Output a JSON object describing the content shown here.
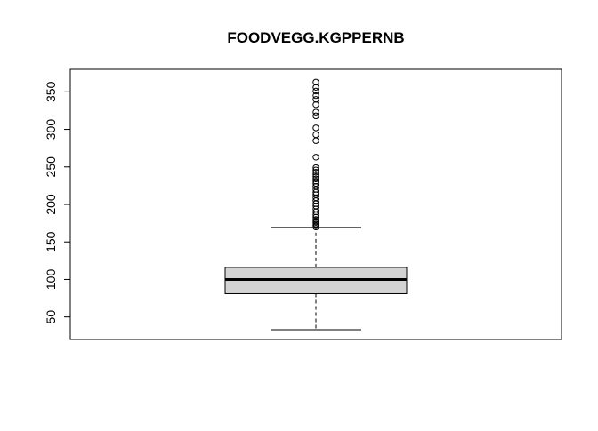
{
  "chart_data": {
    "type": "boxplot",
    "title": "FOODVEGG.KGPPERNB",
    "xlabel": "",
    "ylabel": "",
    "ylim": [
      20,
      380
    ],
    "y_ticks": [
      50,
      100,
      150,
      200,
      250,
      300,
      350
    ],
    "box": {
      "whisker_low": 33,
      "q1": 81,
      "median": 100,
      "q3": 116,
      "whisker_high": 169,
      "fill": "#d3d3d3",
      "outliers": [
        170,
        172,
        174,
        176,
        178,
        180,
        183,
        186,
        190,
        194,
        198,
        201,
        205,
        209,
        213,
        216,
        220,
        224,
        228,
        231,
        234,
        237,
        240,
        243,
        246,
        249,
        263,
        285,
        293,
        302,
        318,
        323,
        333,
        340,
        345,
        351,
        356,
        363
      ]
    },
    "grid": false,
    "legend": "none"
  }
}
